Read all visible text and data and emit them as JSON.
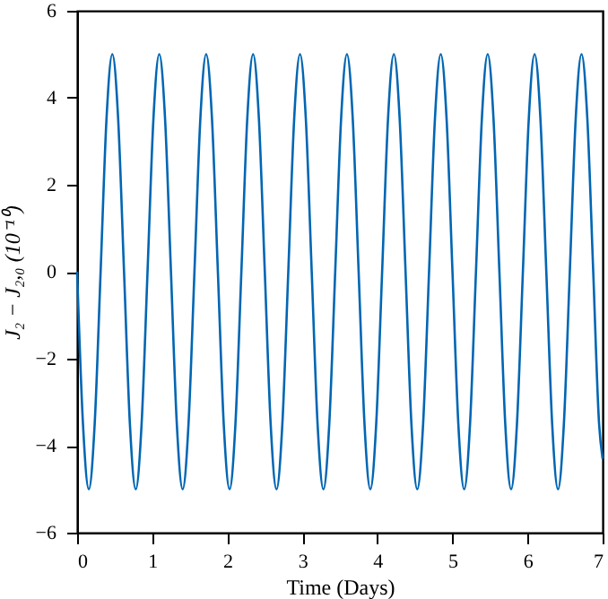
{
  "chart_data": {
    "type": "line",
    "xlabel": "Time (Days)",
    "ylabel": "J₂ − J₂,₀ (10⁻¹⁰)",
    "xlim": [
      0,
      7
    ],
    "xticks": [
      0,
      1,
      2,
      3,
      4,
      5,
      6,
      7
    ],
    "ylim": [
      -6,
      6
    ],
    "yticks": [
      -6,
      -4,
      -2,
      0,
      2,
      4,
      6
    ],
    "grid": false,
    "series": [
      {
        "color": "#0066b3",
        "x": [
          0,
          0.078,
          0.156,
          0.234,
          0.313,
          0.391,
          0.469,
          0.547,
          0.625,
          0.703,
          0.781,
          0.859,
          0.938,
          1.016,
          1.094,
          1.172,
          1.25,
          1.328,
          1.406,
          1.484,
          1.563,
          1.641,
          1.719,
          1.797,
          1.875,
          1.953,
          2.031,
          2.109,
          2.188,
          2.266,
          2.344,
          2.422,
          2.5,
          2.578,
          2.656,
          2.734,
          2.813,
          2.891,
          2.969,
          3.047,
          3.125,
          3.203,
          3.281,
          3.359,
          3.438,
          3.516,
          3.594,
          3.672,
          3.75,
          3.828,
          3.906,
          3.984,
          4.063,
          4.141,
          4.219,
          4.297,
          4.375,
          4.453,
          4.531,
          4.609,
          4.688,
          4.766,
          4.844,
          4.922,
          5,
          5.078,
          5.156,
          5.234,
          5.313,
          5.391,
          5.469,
          5.547,
          5.625,
          5.703,
          5.781,
          5.859,
          5.938,
          6.016,
          6.094,
          6.172,
          6.25,
          6.328,
          6.406,
          6.484,
          6.563,
          6.641,
          6.719,
          6.797,
          6.875,
          6.953,
          7
        ],
        "values": [
          0,
          -3.5,
          -5,
          -3.5,
          0,
          3.5,
          5,
          3.5,
          0,
          -3.5,
          -5,
          -3.5,
          0,
          3.5,
          5,
          3.5,
          0,
          -3.5,
          -5,
          -3.5,
          0,
          3.5,
          5,
          3.5,
          0,
          -3.5,
          -5,
          -3.5,
          0,
          3.5,
          5,
          3.5,
          0,
          -3.5,
          -5,
          -3.5,
          0,
          3.5,
          5,
          3.5,
          0,
          -3.5,
          -5,
          -3.5,
          0,
          3.5,
          5,
          3.5,
          0,
          -3.5,
          -5,
          -3.5,
          0,
          3.5,
          5,
          3.5,
          0,
          -3.5,
          -5,
          -3.5,
          0,
          3.5,
          5,
          3.5,
          0,
          -3.5,
          -5,
          -3.5,
          0,
          3.5,
          5,
          3.5,
          0,
          -3.5,
          -5,
          -3.5,
          0,
          3.5,
          5,
          3.5,
          0,
          -3.5,
          -5,
          -3.5,
          0,
          3.5,
          5,
          3.5,
          0,
          -3.5,
          -4.3
        ]
      }
    ]
  }
}
